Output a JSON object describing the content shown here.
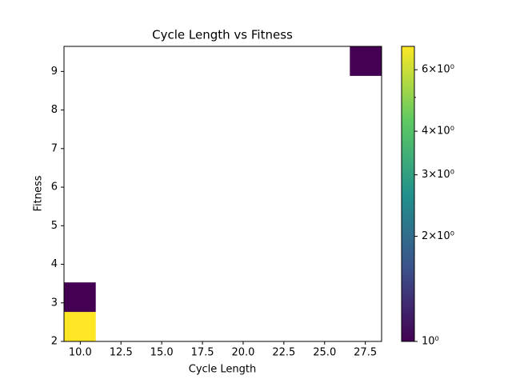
{
  "chart_data": {
    "type": "hist2d",
    "title": "Cycle Length vs Fitness",
    "x_label": "Cycle Length",
    "y_label": "Fitness",
    "cells": [
      {
        "x": [
          9,
          10.95
        ],
        "y": [
          2,
          2.765
        ],
        "count": 7
      },
      {
        "x": [
          9,
          10.95
        ],
        "y": [
          2.765,
          3.53
        ],
        "count": 1
      },
      {
        "x": [
          26.55,
          28.5
        ],
        "y": [
          8.885,
          9.65
        ],
        "count": 1
      }
    ],
    "xlim": [
      9,
      28.5
    ],
    "ylim": [
      2,
      9.65
    ],
    "xticks": [
      {
        "value": 10,
        "label": "10.0"
      },
      12.5,
      {
        "value": 15,
        "label": "15.0"
      },
      17.5,
      {
        "value": 20,
        "label": "20.0"
      },
      22.5,
      {
        "value": 25,
        "label": "25.0"
      },
      27.5
    ],
    "yticks": [
      2,
      3,
      4,
      5,
      6,
      7,
      8,
      9
    ],
    "colormap": "viridis",
    "color_scale": "log",
    "clim": [
      1,
      7
    ],
    "cticks": [
      {
        "value": 1,
        "label": "10⁰"
      },
      {
        "value": 2,
        "label": "2×10⁰"
      },
      {
        "value": 3,
        "label": "3×10⁰"
      },
      {
        "value": 4,
        "label": "4×10⁰"
      },
      {
        "value": 6,
        "label": "6×10⁰"
      }
    ],
    "cticks_minor": [
      5
    ]
  }
}
